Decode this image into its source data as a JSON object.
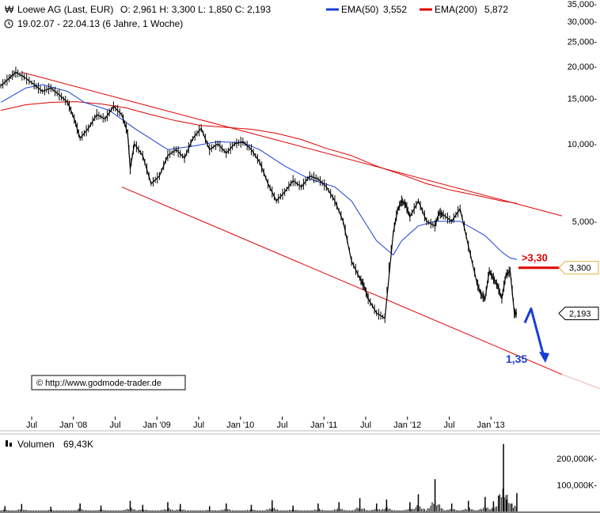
{
  "header": {
    "title": "Loewe AG (Last, EUR)",
    "ohlc": "O: 2,961  H: 3,300  L: 1,850  C: 2,193",
    "ema50_label": "EMA(50)",
    "ema50_value": "3,552",
    "ema200_label": "EMA(200)",
    "ema200_value": "5,872",
    "range": "19.02.07 - 22.04.13 (6 Jahre, 1 Woche)",
    "colors": {
      "ema50": "#1a3fd6",
      "ema200": "#e00000",
      "price": "#000000"
    }
  },
  "chart_data": [
    {
      "type": "line",
      "yscale": "log",
      "ylim": [
        1.0,
        35.0
      ],
      "y_ticks": [
        {
          "value": 35,
          "label": "35,000-"
        },
        {
          "value": 30,
          "label": "30,000-"
        },
        {
          "value": 25,
          "label": "25,000-"
        },
        {
          "value": 20,
          "label": "20,000-"
        },
        {
          "value": 15,
          "label": "15,000-"
        },
        {
          "value": 10,
          "label": "10,000-"
        },
        {
          "value": 5,
          "label": "5,000-"
        }
      ],
      "x_ticks": [
        {
          "t": 0.37,
          "label": "Jul"
        },
        {
          "t": 0.87,
          "label": "Jan '08"
        },
        {
          "t": 1.37,
          "label": "Jul"
        },
        {
          "t": 1.87,
          "label": "Jan '09"
        },
        {
          "t": 2.37,
          "label": "Jul"
        },
        {
          "t": 2.87,
          "label": "Jan '10"
        },
        {
          "t": 3.37,
          "label": "Jul"
        },
        {
          "t": 3.87,
          "label": "Jan '11"
        },
        {
          "t": 4.37,
          "label": "Jul"
        },
        {
          "t": 4.87,
          "label": "Jan '12"
        },
        {
          "t": 5.37,
          "label": "Jul"
        },
        {
          "t": 5.87,
          "label": "Jan '13"
        }
      ],
      "price": {
        "t": [
          0.0,
          0.1,
          0.18,
          0.28,
          0.4,
          0.5,
          0.6,
          0.7,
          0.8,
          0.88,
          0.95,
          1.05,
          1.15,
          1.25,
          1.35,
          1.45,
          1.52,
          1.55,
          1.6,
          1.7,
          1.8,
          1.9,
          2.0,
          2.1,
          2.2,
          2.3,
          2.4,
          2.5,
          2.6,
          2.7,
          2.8,
          2.9,
          3.0,
          3.1,
          3.2,
          3.3,
          3.4,
          3.5,
          3.6,
          3.7,
          3.8,
          3.9,
          4.0,
          4.1,
          4.2,
          4.3,
          4.35,
          4.4,
          4.5,
          4.6,
          4.7,
          4.75,
          4.8,
          4.85,
          4.9,
          5.0,
          5.1,
          5.2,
          5.25,
          5.3,
          5.4,
          5.5,
          5.6,
          5.7,
          5.75,
          5.8,
          5.85,
          5.9,
          5.95,
          6.0,
          6.05,
          6.1,
          6.15,
          6.18
        ],
        "values": [
          16.8,
          18.0,
          19.0,
          18.2,
          17.0,
          16.0,
          16.5,
          15.5,
          14.5,
          12.5,
          10.5,
          11.5,
          13.0,
          12.5,
          14.0,
          13.0,
          11.0,
          8.0,
          10.0,
          9.0,
          7.0,
          7.5,
          9.0,
          9.5,
          8.8,
          10.5,
          11.5,
          9.5,
          10.0,
          9.2,
          10.0,
          10.2,
          9.5,
          8.5,
          7.0,
          6.0,
          6.5,
          7.2,
          6.8,
          7.5,
          7.3,
          6.8,
          6.0,
          5.0,
          3.5,
          3.0,
          2.8,
          2.5,
          2.2,
          2.1,
          4.5,
          5.5,
          6.0,
          5.8,
          5.2,
          6.0,
          5.0,
          4.8,
          5.4,
          5.3,
          5.0,
          5.6,
          4.0,
          2.9,
          2.6,
          2.5,
          3.2,
          3.0,
          2.8,
          2.5,
          3.1,
          3.2,
          2.2,
          2.193
        ]
      },
      "ema50": {
        "t": [
          0.0,
          0.3,
          0.5,
          0.8,
          1.0,
          1.3,
          1.6,
          2.0,
          2.3,
          2.6,
          2.9,
          3.1,
          3.4,
          3.7,
          4.0,
          4.2,
          4.5,
          4.7,
          4.8,
          5.0,
          5.2,
          5.5,
          5.8,
          6.0,
          6.1,
          6.18
        ],
        "values": [
          14.5,
          16.5,
          17.0,
          16.0,
          14.5,
          13.5,
          11.5,
          9.5,
          9.8,
          10.2,
          10.1,
          9.5,
          8.2,
          7.3,
          6.8,
          6.0,
          4.2,
          3.7,
          4.2,
          4.8,
          5.0,
          5.0,
          4.4,
          3.8,
          3.6,
          3.552
        ]
      },
      "ema200": {
        "t": [
          0.0,
          0.3,
          0.6,
          0.9,
          1.2,
          1.5,
          1.8,
          2.1,
          2.4,
          2.7,
          3.0,
          3.3,
          3.6,
          3.9,
          4.2,
          4.5,
          4.8,
          5.1,
          5.4,
          5.7,
          6.0,
          6.18
        ],
        "values": [
          13.5,
          14.2,
          14.5,
          14.6,
          14.3,
          13.8,
          13.0,
          12.3,
          11.8,
          11.6,
          11.4,
          11.0,
          10.4,
          9.6,
          9.0,
          8.2,
          7.6,
          7.0,
          6.6,
          6.3,
          6.0,
          5.872
        ]
      },
      "trendlines": [
        {
          "t0": 0.25,
          "v0": 19.0,
          "t1": 6.72,
          "v1": 5.25
        },
        {
          "t0": 1.45,
          "v0": 6.8,
          "t1": 6.72,
          "v1": 1.27
        }
      ],
      "annotations": [
        {
          "label": ">3,30",
          "value": 3.3
        },
        {
          "label": "1,35",
          "value": 1.35
        }
      ],
      "price_tags": [
        {
          "label": "3,300",
          "value": 3.3
        },
        {
          "label": "2,193",
          "value": 2.193
        }
      ],
      "source": "© http://www.godmode-trader.de"
    },
    {
      "type": "bar",
      "title": "Volumen",
      "last_value_label": "69,43K",
      "y_ticks": [
        {
          "value": 200,
          "label": "200,000K-"
        },
        {
          "value": 100,
          "label": "100,000K-"
        }
      ],
      "ylim": [
        0,
        260
      ],
      "spikes": [
        {
          "t": 0.05,
          "v": 20
        },
        {
          "t": 0.25,
          "v": 28
        },
        {
          "t": 0.6,
          "v": 18
        },
        {
          "t": 0.95,
          "v": 30
        },
        {
          "t": 1.2,
          "v": 22
        },
        {
          "t": 1.55,
          "v": 40
        },
        {
          "t": 1.7,
          "v": 25
        },
        {
          "t": 2.0,
          "v": 35
        },
        {
          "t": 2.15,
          "v": 28
        },
        {
          "t": 2.5,
          "v": 20
        },
        {
          "t": 2.7,
          "v": 30
        },
        {
          "t": 3.0,
          "v": 25
        },
        {
          "t": 3.25,
          "v": 42
        },
        {
          "t": 3.5,
          "v": 22
        },
        {
          "t": 3.8,
          "v": 30
        },
        {
          "t": 4.05,
          "v": 35
        },
        {
          "t": 4.3,
          "v": 50
        },
        {
          "t": 4.5,
          "v": 30
        },
        {
          "t": 4.62,
          "v": 45
        },
        {
          "t": 4.9,
          "v": 35
        },
        {
          "t": 5.0,
          "v": 65
        },
        {
          "t": 5.2,
          "v": 122
        },
        {
          "t": 5.4,
          "v": 30
        },
        {
          "t": 5.6,
          "v": 40
        },
        {
          "t": 5.8,
          "v": 55
        },
        {
          "t": 5.9,
          "v": 38
        },
        {
          "t": 5.96,
          "v": 60
        },
        {
          "t": 6.02,
          "v": 255
        },
        {
          "t": 6.06,
          "v": 45
        },
        {
          "t": 6.12,
          "v": 30
        },
        {
          "t": 6.18,
          "v": 69.43
        }
      ]
    }
  ]
}
